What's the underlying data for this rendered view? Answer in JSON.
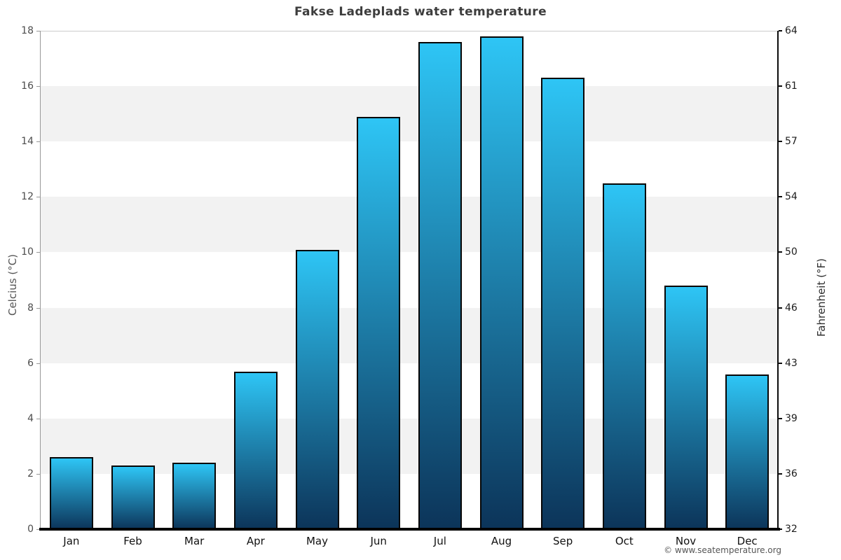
{
  "title": "Fakse Ladeplads water temperature",
  "axes": {
    "left_label": "Celcius (°C)",
    "right_label": "Fahrenheit (°F)"
  },
  "footer": "© www.seatemperature.org",
  "chart_data": {
    "type": "bar",
    "title": "Fakse Ladeplads water temperature",
    "categories": [
      "Jan",
      "Feb",
      "Mar",
      "Apr",
      "May",
      "Jun",
      "Jul",
      "Aug",
      "Sep",
      "Oct",
      "Nov",
      "Dec"
    ],
    "values": [
      2.6,
      2.3,
      2.4,
      5.7,
      10.1,
      14.9,
      17.6,
      17.8,
      16.3,
      12.5,
      8.8,
      5.6
    ],
    "xlabel": "",
    "ylabel_left": "Celcius (°C)",
    "ylabel_right": "Fahrenheit (°F)",
    "ylim": [
      0,
      18
    ],
    "yticks_left": [
      0,
      2,
      4,
      6,
      8,
      10,
      12,
      14,
      16,
      18
    ],
    "yticks_right": [
      32,
      36,
      39,
      43,
      46,
      50,
      54,
      57,
      61,
      64
    ],
    "legend": false,
    "grid": "alternating-horizontal-bands",
    "colors": {
      "bar_gradient_top": "#2ec5f5",
      "bar_gradient_bottom": "#0c3459",
      "bar_border": "#060606",
      "band_gray": "#f2f2f2",
      "band_white": "#ffffff",
      "title_text": "#3d3d3d"
    }
  }
}
